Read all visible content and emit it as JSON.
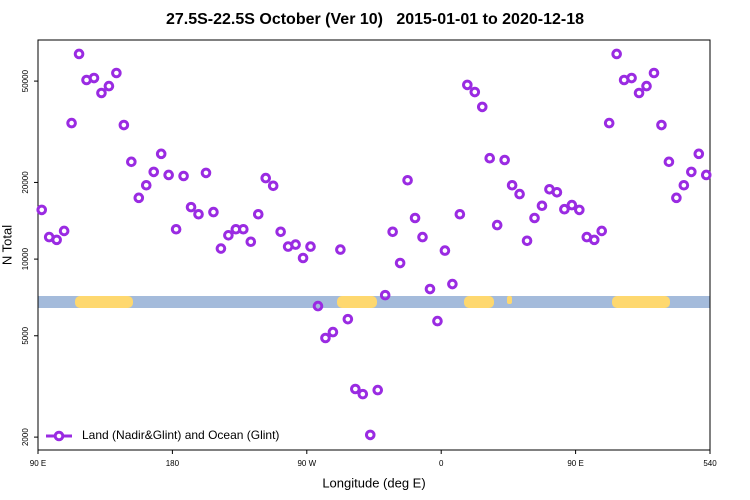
{
  "chart_data": {
    "type": "scatter",
    "title": "27.5S-22.5S October (Ver 10)   2015-01-01 to 2020-12-18",
    "x_label": "Longitude (deg E)",
    "y_label": "N Total",
    "log_y": true,
    "legend": "bottom-left",
    "xlim": [
      90,
      540
    ],
    "xticks": [
      {
        "value": 90,
        "label": "90 E"
      },
      180,
      {
        "value": 270,
        "label": "90 W"
      },
      {
        "value": 360,
        "label": "0"
      },
      {
        "value": 450,
        "label": "90 E"
      },
      540
    ],
    "ylim": [
      1780,
      72500
    ],
    "yticks": [
      2000,
      5000,
      10000,
      20000,
      50000
    ],
    "series": [
      {
        "name": "Land (Nadir&Glint) and Ocean (Glint)",
        "color": "#9a2be2",
        "x": [
          92.5,
          97.5,
          102.5,
          107.5,
          112.5,
          117.5,
          122.5,
          127.5,
          132.5,
          137.5,
          142.5,
          147.5,
          152.5,
          157.5,
          162.5,
          167.5,
          172.5,
          177.5,
          182.5,
          187.5,
          192.5,
          197.5,
          202.5,
          207.5,
          212.5,
          217.5,
          222.5,
          227.5,
          232.5,
          237.5,
          242.5,
          247.5,
          252.5,
          257.5,
          262.5,
          267.5,
          272.5,
          277.5,
          282.5,
          287.5,
          292.5,
          297.5,
          302.5,
          307.5,
          312.5,
          317.5,
          322.5,
          327.5,
          332.5,
          337.5,
          342.5,
          347.5,
          352.5,
          357.5,
          362.5,
          367.5,
          372.5,
          377.5,
          382.5,
          387.5,
          392.5,
          397.5,
          402.5,
          407.5,
          412.5,
          417.5,
          422.5,
          427.5,
          432.5,
          437.5,
          442.5,
          447.5,
          452.5,
          457.5,
          462.5,
          467.5,
          472.5,
          477.5,
          482.5,
          487.5,
          492.5,
          497.5,
          502.5,
          507.5,
          512.5,
          517.5,
          522.5,
          527.5,
          532.5,
          537.5
        ],
        "values": [
          15600,
          12200,
          11900,
          12900,
          34200,
          63900,
          50500,
          51400,
          44900,
          47800,
          53800,
          33600,
          24100,
          17400,
          19500,
          22000,
          25900,
          21400,
          13100,
          21200,
          16000,
          15000,
          21800,
          15300,
          11000,
          12400,
          13100,
          13100,
          11700,
          15000,
          20800,
          19400,
          12800,
          11200,
          11400,
          10100,
          11200,
          6540,
          4900,
          5170,
          10900,
          5810,
          3090,
          2950,
          2040,
          3060,
          7220,
          12800,
          9650,
          20400,
          14500,
          12200,
          7630,
          5710,
          10800,
          7980,
          15000,
          48300,
          45300,
          39600,
          24900,
          13600,
          24500,
          19500,
          18000,
          11800,
          14500,
          16200,
          18800,
          18300,
          15700,
          16300,
          15600,
          12200,
          11900,
          12900,
          34200,
          63900,
          50500,
          51400,
          44900,
          47800,
          53800,
          33600,
          24100,
          17400,
          19500,
          22000,
          25900,
          21400
        ]
      }
    ]
  }
}
